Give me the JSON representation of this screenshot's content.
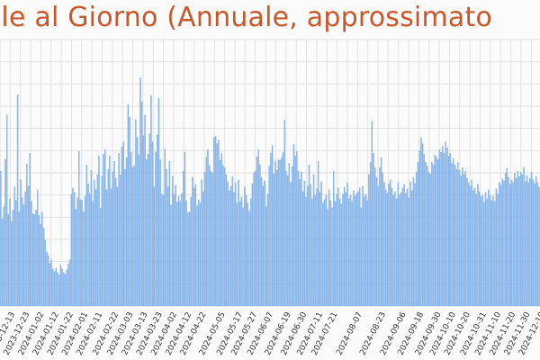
{
  "chart_data": {
    "type": "bar",
    "title": "role al Giorno (Annuale, approssimato",
    "xlabel": "",
    "ylabel": "",
    "ylim": [
      0,
      3000
    ],
    "grid": true,
    "legend": "none",
    "bar_color": "#8ab8ec",
    "bar_edge_color": "#6fa3e0",
    "title_color": "#c9572a",
    "grid_color": "#e2e2e2",
    "x_start": "2023-12-09",
    "x_end": "2024-12-13",
    "tick_labels": [
      "2023-12-13",
      "2023-12-23",
      "2024-01-02",
      "2024-01-12",
      "2024-01-22",
      "2024-02-01",
      "2024-02-11",
      "2024-02-22",
      "2024-03-03",
      "2024-03-13",
      "2024-03-23",
      "2024-04-02",
      "2024-04-12",
      "2024-04-22",
      "2024-05-05",
      "2024-05-17",
      "2024-05-27",
      "2024-06-07",
      "2024-06-19",
      "2024-06-30",
      "2024-07-11",
      "2024-07-21",
      "2024-08-07",
      "2024-08-23",
      "2024-09-06",
      "2024-09-18",
      "2024-09-30",
      "2024-10-10",
      "2024-10-20",
      "2024-10-31",
      "2024-11-10",
      "2024-11-20",
      "2024-11-30",
      "2024-12-10"
    ],
    "values": [
      1520,
      980,
      1120,
      1650,
      2150,
      1030,
      1210,
      950,
      1080,
      1340,
      1190,
      2380,
      1060,
      1420,
      1220,
      1140,
      1290,
      1600,
      1350,
      1720,
      1180,
      1040,
      1030,
      1080,
      1310,
      1020,
      920,
      1060,
      880,
      740,
      610,
      570,
      480,
      520,
      420,
      390,
      430,
      380,
      350,
      460,
      420,
      380,
      360,
      410,
      470,
      520,
      1260,
      1330,
      1280,
      1090,
      1220,
      1740,
      1200,
      1190,
      1060,
      1240,
      1590,
      1380,
      1270,
      1530,
      1180,
      1420,
      1310,
      1480,
      1690,
      1100,
      1460,
      1710,
      1760,
      1310,
      1540,
      1690,
      1320,
      1510,
      1630,
      1440,
      1340,
      1720,
      1480,
      1790,
      1850,
      1540,
      1670,
      2270,
      2130,
      1730,
      1560,
      1580,
      2100,
      1900,
      1700,
      2570,
      2300,
      1920,
      2150,
      1650,
      1710,
      1940,
      2370,
      1850,
      1340,
      1730,
      1930,
      2340,
      1650,
      1260,
      1250,
      1770,
      1540,
      1340,
      1630,
      1140,
      1460,
      1260,
      1360,
      1170,
      1240,
      1180,
      1270,
      1520,
      1730,
      1190,
      1050,
      1060,
      1230,
      1450,
      1330,
      1370,
      1130,
      1200,
      1160,
      1420,
      1290,
      1510,
      1680,
      1760,
      1590,
      1520,
      1500,
      1900,
      1910,
      1830,
      1870,
      1640,
      1720,
      1580,
      1560,
      1480,
      1400,
      1300,
      1350,
      1460,
      1280,
      1390,
      1160,
      1420,
      1180,
      1230,
      1110,
      1340,
      1250,
      1160,
      1070,
      1210,
      1380,
      1500,
      1520,
      1680,
      1760,
      1590,
      1450,
      1350,
      1410,
      1120,
      1260,
      1580,
      1720,
      1810,
      1490,
      1630,
      1530,
      1650,
      1640,
      1670,
      1730,
      2090,
      1520,
      1470,
      1610,
      1390,
      1570,
      1820,
      1690,
      1740,
      1520,
      1430,
      1510,
      1290,
      1410,
      1230,
      1350,
      1590,
      1370,
      1210,
      1480,
      1250,
      1320,
      1630,
      1280,
      1400,
      1160,
      1200,
      1250,
      1090,
      1310,
      1190,
      1110,
      1520,
      1180,
      1260,
      1330,
      1210,
      1150,
      1260,
      1340,
      1280,
      1390,
      1210,
      1250,
      1180,
      1300,
      1240,
      1270,
      1290,
      1330,
      1110,
      1350,
      1230,
      1260,
      1190,
      1480,
      1620,
      2080,
      1720,
      1560,
      1450,
      1350,
      1560,
      1670,
      1500,
      1390,
      1310,
      1270,
      1380,
      1420,
      1330,
      1250,
      1290,
      1210,
      1390,
      1250,
      1280,
      1330,
      1370,
      1270,
      1320,
      1220,
      1400,
      1300,
      1450,
      1380,
      1510,
      1620,
      1750,
      1900,
      1830,
      1710,
      1620,
      1580,
      1510,
      1490,
      1620,
      1590,
      1700,
      1680,
      1650,
      1760,
      1730,
      1800,
      1720,
      1850,
      1780,
      1690,
      1720,
      1610,
      1660,
      1590,
      1540,
      1620,
      1530,
      1470,
      1560,
      1480,
      1520,
      1440,
      1390,
      1350,
      1420,
      1300,
      1330,
      1260,
      1370,
      1290,
      1230,
      1250,
      1170,
      1280,
      1210,
      1310,
      1250,
      1190,
      1240,
      1180,
      1320,
      1260,
      1390,
      1360,
      1430,
      1410,
      1500,
      1550,
      1450,
      1370,
      1420,
      1390,
      1500,
      1440,
      1520,
      1460,
      1510,
      1480,
      1560,
      1400,
      1470,
      1390,
      1440,
      1510,
      1420,
      1380,
      1460,
      1390,
      1340
    ]
  }
}
